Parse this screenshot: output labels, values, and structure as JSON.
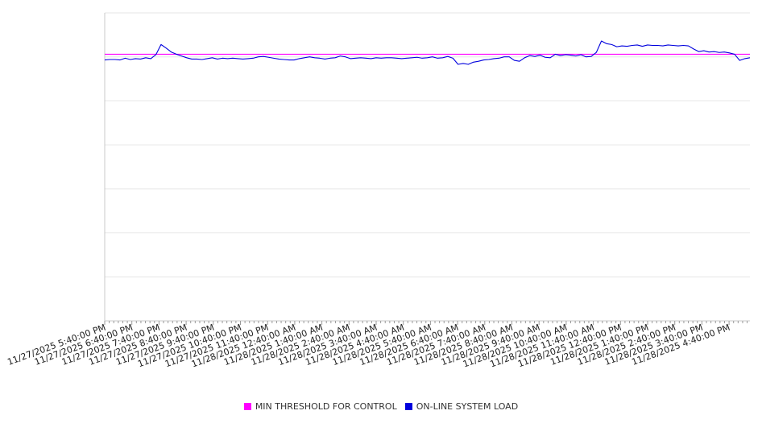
{
  "chart_data": {
    "type": "line",
    "x_labels": [
      "11/27/2025 5:40:00 PM",
      "11/27/2025 6:40:00 PM",
      "11/27/2025 7:40:00 PM",
      "11/27/2025 8:40:00 PM",
      "11/27/2025 9:40:00 PM",
      "11/27/2025 10:40:00 PM",
      "11/27/2025 11:40:00 PM",
      "11/28/2025 12:40:00 AM",
      "11/28/2025 1:40:00 AM",
      "11/28/2025 2:40:00 AM",
      "11/28/2025 3:40:00 AM",
      "11/28/2025 4:40:00 AM",
      "11/28/2025 5:40:00 AM",
      "11/28/2025 6:40:00 AM",
      "11/28/2025 7:40:00 AM",
      "11/28/2025 8:40:00 AM",
      "11/28/2025 9:40:00 AM",
      "11/28/2025 10:40:00 AM",
      "11/28/2025 11:40:00 AM",
      "11/28/2025 12:40:00 PM",
      "11/28/2025 1:40:00 PM",
      "11/28/2025 2:40:00 PM",
      "11/28/2025 3:40:00 PM",
      "11/28/2025 4:40:00 PM"
    ],
    "ylim": [
      0,
      700
    ],
    "grid": true,
    "legend_position": "bottom",
    "series": [
      {
        "name": "MIN THRESHOLD FOR CONTROL",
        "color": "#ff00ff",
        "values": [
          606,
          606,
          606,
          606,
          606,
          606,
          606,
          606,
          606,
          606,
          606,
          606,
          606,
          606,
          606,
          606,
          606,
          606,
          606,
          606,
          606,
          606,
          606,
          606,
          606
        ]
      },
      {
        "name": "ON-LINE SYSTEM LOAD",
        "color": "#0000dd",
        "values": [
          593,
          594,
          594,
          593,
          597,
          594,
          596,
          595,
          598,
          596,
          605,
          628,
          620,
          611,
          606,
          602,
          598,
          595,
          595,
          594,
          596,
          598,
          595,
          597,
          596,
          597,
          596,
          595,
          596,
          597,
          600,
          601,
          599,
          597,
          595,
          594,
          593,
          593,
          596,
          598,
          600,
          598,
          597,
          595,
          597,
          598,
          602,
          600,
          596,
          597,
          598,
          597,
          596,
          598,
          597,
          598,
          598,
          597,
          596,
          597,
          598,
          599,
          597,
          598,
          600,
          597,
          598,
          601,
          597,
          583,
          585,
          583,
          588,
          590,
          593,
          594,
          596,
          597,
          600,
          600,
          592,
          590,
          598,
          603,
          601,
          604,
          599,
          598,
          606,
          603,
          605,
          604,
          602,
          605,
          600,
          601,
          610,
          636,
          630,
          628,
          623,
          625,
          624,
          626,
          627,
          624,
          627,
          626,
          626,
          625,
          627,
          626,
          625,
          626,
          625,
          618,
          612,
          614,
          611,
          612,
          610,
          611,
          609,
          606,
          592,
          596,
          598
        ]
      }
    ]
  }
}
